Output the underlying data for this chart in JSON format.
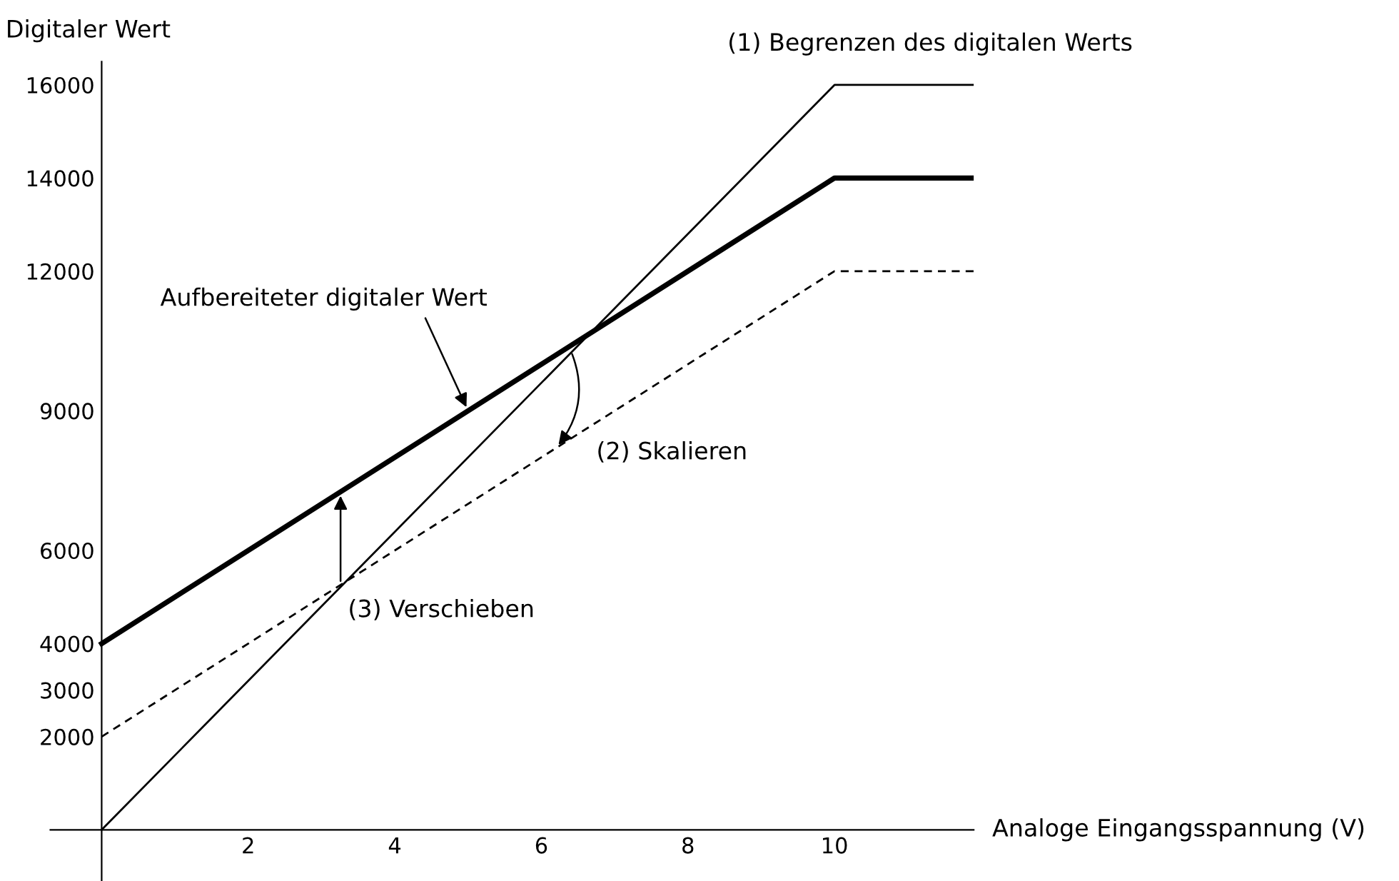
{
  "chart_data": {
    "type": "line",
    "xlabel": "Analoge Eingangsspannung (V)",
    "ylabel": "Digitaler Wert",
    "xlim": [
      -0.7,
      11.9
    ],
    "ylim": [
      -1100,
      16500
    ],
    "xticks": [
      2,
      4,
      6,
      8,
      10
    ],
    "yticks": [
      2000,
      3000,
      4000,
      6000,
      9000,
      12000,
      14000,
      16000
    ],
    "grid": false,
    "legend": false,
    "marker": "none",
    "series": [
      {
        "color": "#000000",
        "x": [
          0,
          10,
          11.9
        ],
        "values": [
          0,
          16000,
          16000
        ],
        "line_style": "solid"
      },
      {
        "color": "#000000",
        "x": [
          0,
          10,
          11.9
        ],
        "values": [
          4000,
          14000,
          14000
        ],
        "line_style": "solid"
      },
      {
        "color": "#000000",
        "x": [
          0,
          10,
          11.9
        ],
        "values": [
          2000,
          12000,
          12000
        ],
        "line_style": "dashed"
      }
    ],
    "annotations": [
      "(1) Begrenzen des digitalen Werts",
      {
        "text": "Aufbereiteter digitaler Wert",
        "x": 5,
        "y": 9000
      },
      {
        "text": "(2) Skalieren",
        "x": 6.2,
        "y": 8200
      },
      {
        "text": "(3) Verschieben",
        "x": 3.26,
        "y": 7260
      }
    ]
  }
}
